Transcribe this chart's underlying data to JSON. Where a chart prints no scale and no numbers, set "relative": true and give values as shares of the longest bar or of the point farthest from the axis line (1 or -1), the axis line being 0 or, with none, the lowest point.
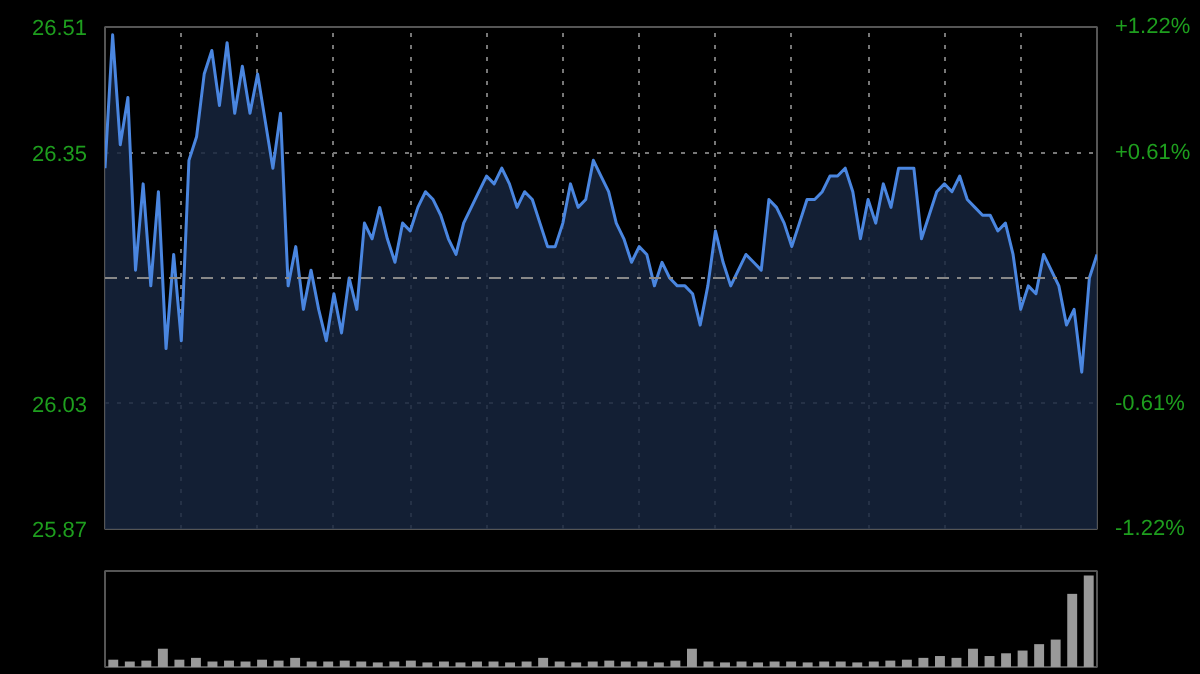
{
  "chart_data": [
    {
      "type": "area",
      "categories": [
        null,
        null,
        null,
        null,
        null,
        null,
        null,
        null,
        null,
        null,
        null,
        null,
        null,
        null,
        null,
        null,
        null,
        null,
        null,
        null,
        null,
        null,
        null,
        null,
        null,
        null,
        null,
        null,
        null,
        null,
        null,
        null,
        null,
        null,
        null,
        null,
        null,
        null,
        null,
        null,
        null,
        null,
        null,
        null,
        null,
        null,
        null,
        null,
        null,
        null,
        null,
        null,
        null,
        null,
        null,
        null,
        null,
        null,
        null,
        null,
        null,
        null,
        null,
        null,
        null,
        null,
        null,
        null,
        null,
        null,
        null,
        null,
        null,
        null,
        null,
        null,
        null,
        null,
        null,
        null,
        null,
        null,
        null,
        null,
        null,
        null,
        null,
        null,
        null,
        null,
        null,
        null,
        null,
        null,
        null,
        null,
        null,
        null,
        null,
        null,
        null,
        null,
        null,
        null,
        null,
        null,
        null,
        null,
        null,
        null,
        null,
        null,
        null,
        null,
        null,
        null,
        null,
        null,
        null,
        null,
        null,
        null,
        null,
        null,
        null,
        null,
        null,
        null,
        null,
        null,
        null
      ],
      "series": [
        {
          "color": "#4a86e0",
          "values": [
            26.33,
            26.5,
            26.36,
            26.42,
            26.2,
            26.31,
            26.18,
            26.3,
            26.1,
            26.22,
            26.11,
            26.34,
            26.37,
            26.45,
            26.48,
            26.41,
            26.49,
            26.4,
            26.46,
            26.4,
            26.45,
            26.39,
            26.33,
            26.4,
            26.18,
            26.23,
            26.15,
            26.2,
            26.15,
            26.11,
            26.17,
            26.12,
            26.19,
            26.15,
            26.26,
            26.24,
            26.28,
            26.24,
            26.21,
            26.26,
            26.25,
            26.28,
            26.3,
            26.29,
            26.27,
            26.24,
            26.22,
            26.26,
            26.28,
            26.3,
            26.32,
            26.31,
            26.33,
            26.31,
            26.28,
            26.3,
            26.29,
            26.26,
            26.23,
            26.23,
            26.26,
            26.31,
            26.28,
            26.29,
            26.34,
            26.32,
            26.3,
            26.26,
            26.24,
            26.21,
            26.23,
            26.22,
            26.18,
            26.21,
            26.19,
            26.18,
            26.18,
            26.17,
            26.13,
            26.18,
            26.25,
            26.21,
            26.18,
            26.2,
            26.22,
            26.21,
            26.2,
            26.29,
            26.28,
            26.26,
            26.23,
            26.26,
            26.29,
            26.29,
            26.3,
            26.32,
            26.32,
            26.33,
            26.3,
            26.24,
            26.29,
            26.26,
            26.31,
            26.28,
            26.33,
            26.33,
            26.33,
            26.24,
            26.27,
            26.3,
            26.31,
            26.3,
            26.32,
            26.29,
            26.28,
            26.27,
            26.27,
            26.25,
            26.26,
            26.22,
            26.15,
            26.18,
            26.17,
            26.22,
            26.2,
            26.18,
            26.13,
            26.15,
            26.07,
            26.19,
            26.22
          ]
        }
      ],
      "ylim": [
        25.87,
        26.51
      ],
      "yticks": [
        25.87,
        26.03,
        26.35,
        26.51
      ],
      "y2lim": [
        -1.22,
        1.22
      ],
      "y2ticks": [
        {
          "value": -1.22,
          "label": "-1.22%"
        },
        {
          "value": -0.61,
          "label": "-0.61%"
        },
        {
          "value": 0.61,
          "label": "+0.61%"
        },
        {
          "value": 1.22,
          "label": "+1.22%"
        }
      ],
      "ref_lines": [
        {
          "axis": "y",
          "value": 26.19,
          "color": "#888888",
          "line_style": "dashed"
        }
      ],
      "grid": true,
      "tick_labels": "y"
    },
    {
      "type": "bar",
      "relative": true,
      "categories": [
        null,
        null,
        null,
        null,
        null,
        null,
        null,
        null,
        null,
        null,
        null,
        null,
        null,
        null,
        null,
        null,
        null,
        null,
        null,
        null,
        null,
        null,
        null,
        null,
        null,
        null,
        null,
        null,
        null,
        null,
        null,
        null,
        null,
        null,
        null,
        null,
        null,
        null,
        null,
        null,
        null,
        null,
        null,
        null,
        null,
        null,
        null,
        null,
        null,
        null,
        null,
        null,
        null,
        null,
        null,
        null,
        null,
        null,
        null,
        null
      ],
      "values": [
        0.08,
        0.06,
        0.07,
        0.2,
        0.08,
        0.1,
        0.06,
        0.07,
        0.06,
        0.08,
        0.07,
        0.1,
        0.06,
        0.06,
        0.07,
        0.06,
        0.05,
        0.06,
        0.07,
        0.05,
        0.06,
        0.05,
        0.06,
        0.06,
        0.05,
        0.06,
        0.1,
        0.06,
        0.05,
        0.06,
        0.07,
        0.06,
        0.06,
        0.05,
        0.07,
        0.2,
        0.06,
        0.05,
        0.06,
        0.05,
        0.06,
        0.06,
        0.05,
        0.06,
        0.06,
        0.05,
        0.06,
        0.07,
        0.08,
        0.1,
        0.12,
        0.1,
        0.2,
        0.12,
        0.15,
        0.18,
        0.25,
        0.3,
        0.8,
        1.0
      ],
      "color": "#999999",
      "grid": false,
      "tick_labels": false
    }
  ]
}
